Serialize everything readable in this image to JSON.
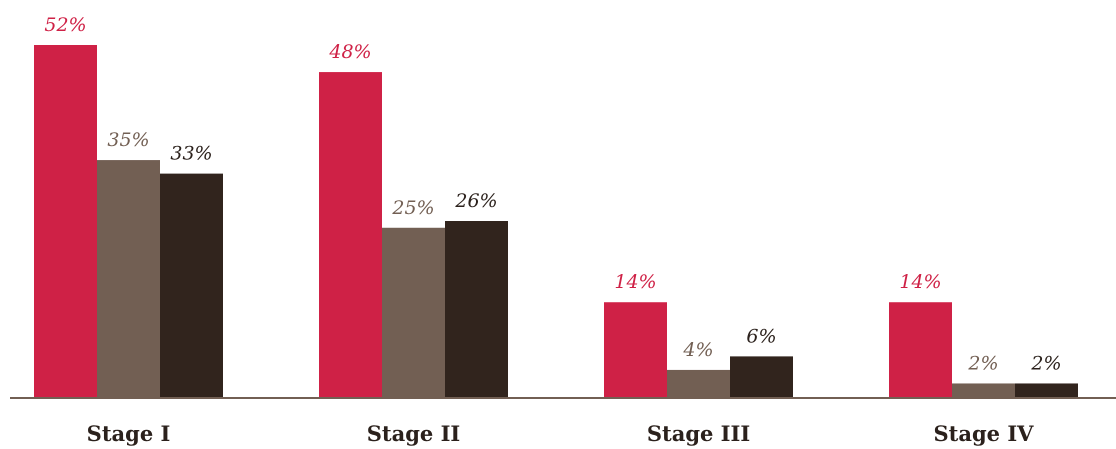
{
  "chart_data": {
    "type": "bar",
    "categories": [
      "Stage I",
      "Stage II",
      "Stage III",
      "Stage IV"
    ],
    "series": [
      {
        "values": [
          52,
          48,
          14,
          14
        ],
        "labels": [
          "52%",
          "48%",
          "14%",
          "14%"
        ],
        "color": "#cf2146",
        "label_color": "#cf2146"
      },
      {
        "values": [
          35,
          25,
          4,
          2
        ],
        "labels": [
          "35%",
          "25%",
          "4%",
          "2%"
        ],
        "color": "#725f53",
        "label_color": "#725f53"
      },
      {
        "values": [
          33,
          26,
          6,
          2
        ],
        "labels": [
          "33%",
          "26%",
          "6%",
          "2%"
        ],
        "color": "#31241d",
        "label_color": "#2b211c"
      }
    ],
    "ylim": [
      0,
      52
    ],
    "grid": false,
    "legend": "none",
    "axis_color": "#725f53"
  }
}
